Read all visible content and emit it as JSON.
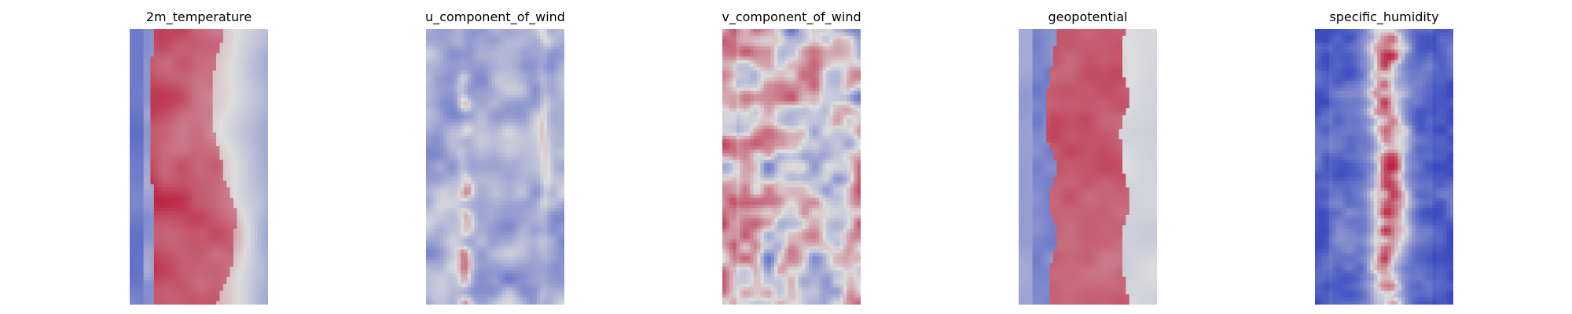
{
  "figure": {
    "colormap": "coolwarm",
    "colormap_low": "#3b4cc0",
    "colormap_mid": "#dddddd",
    "colormap_high": "#b40426"
  },
  "chart_data": [
    {
      "type": "heatmap",
      "title": "2m_temperature",
      "colormap": "coolwarm",
      "pattern": "warm central band along the grid, cool strips on both edges",
      "axes_visible": false
    },
    {
      "type": "heatmap",
      "title": "u_component_of_wind",
      "colormap": "coolwarm",
      "pattern": "mostly cool blue with thin warm red filaments near the edges",
      "axes_visible": false
    },
    {
      "type": "heatmap",
      "title": "v_component_of_wind",
      "colormap": "coolwarm",
      "pattern": "neutral gray field with scattered warm and cool eddies",
      "axes_visible": false
    },
    {
      "type": "heatmap",
      "title": "geopotential",
      "colormap": "coolwarm",
      "pattern": "broad warm central band, cool left edge, neutral right edge",
      "axes_visible": false
    },
    {
      "type": "heatmap",
      "title": "specific_humidity",
      "colormap": "coolwarm",
      "pattern": "cool blue background with narrow dark-red central column",
      "axes_visible": false
    }
  ]
}
